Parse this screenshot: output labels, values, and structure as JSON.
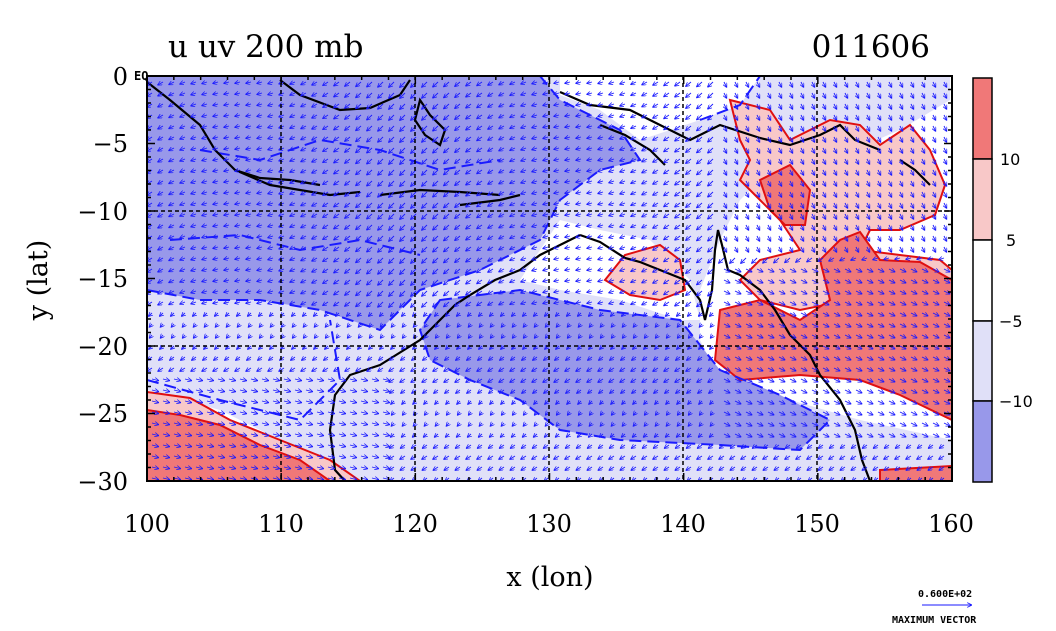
{
  "chart_data": {
    "type": "contour",
    "title_left": "u uv 200 mb",
    "title_right": "011606",
    "xlabel": "x (lon)",
    "ylabel": "y (lat)",
    "xlim": [
      100,
      160
    ],
    "ylim": [
      -30,
      0
    ],
    "x_ticks": [
      "100",
      "110",
      "120",
      "130",
      "140",
      "150",
      "160"
    ],
    "y_ticks": [
      "0",
      "−5",
      "−10",
      "−15",
      "−20",
      "−25",
      "−30"
    ],
    "eq_label": "EQ",
    "grid": true,
    "colorbar": {
      "levels": [
        -10,
        -5,
        5,
        10
      ],
      "labels": [
        "10",
        "5",
        "−5",
        "−10"
      ],
      "colors": [
        "#f07878",
        "#f8c8c8",
        "#ffffff",
        "#e0e0f8",
        "#9898ea"
      ]
    },
    "vector_key": {
      "value": "0.600E+02",
      "label": "MAXIMUM VECTOR"
    },
    "regions": [
      {
        "name": "strong-westerly-southwest",
        "sign": "positive",
        "level": ">10",
        "lon_range": [
          100,
          115
        ],
        "lat_range": [
          -30,
          -24
        ]
      },
      {
        "name": "strong-westerly-east-australia",
        "sign": "positive",
        "level": ">10",
        "lon_range": [
          143,
          160
        ],
        "lat_range": [
          -26,
          -15
        ]
      },
      {
        "name": "westerly-coral-sea",
        "sign": "positive",
        "level": "5-10",
        "lon_range": [
          144,
          160
        ],
        "lat_range": [
          -12,
          -3
        ]
      },
      {
        "name": "westerly-gulf-carpentaria",
        "sign": "positive",
        "level": "5-10",
        "lon_range": [
          135,
          140
        ],
        "lat_range": [
          -16,
          -13
        ]
      },
      {
        "name": "easterly-maritime-continent",
        "sign": "negative",
        "level": "<-10",
        "lon_range": [
          100,
          130
        ],
        "lat_range": [
          -17,
          0
        ]
      },
      {
        "name": "easterly-australia-band",
        "sign": "negative",
        "level": "<-10",
        "lon_range": [
          120,
          150
        ],
        "lat_range": [
          -25,
          -17
        ]
      }
    ],
    "vector_color": "#1a1aff",
    "contour_colors": {
      "positive": "#e01010",
      "negative": "#1a1aff",
      "coast": "#000000"
    }
  }
}
